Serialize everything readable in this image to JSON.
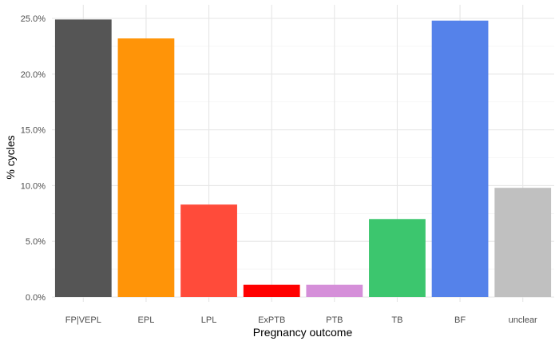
{
  "chart_data": {
    "type": "bar",
    "categories": [
      "FP|VEPL",
      "EPL",
      "LPL",
      "ExPTB",
      "PTB",
      "TB",
      "BF",
      "unclear"
    ],
    "values": [
      24.9,
      23.2,
      8.3,
      1.1,
      1.1,
      7.0,
      24.8,
      9.8
    ],
    "colors": [
      "#555555",
      "#ff9408",
      "#ff4b3a",
      "#ff0000",
      "#d58fd9",
      "#3cc66e",
      "#5582ea",
      "#c0c0c0"
    ],
    "xlabel": "Pregnancy outcome",
    "ylabel": "% cycles",
    "ylim": [
      0,
      25.7
    ],
    "yticks": [
      0,
      5,
      10,
      15,
      20,
      25
    ],
    "ytick_labels": [
      "0.0%",
      "5.0%",
      "10.0%",
      "15.0%",
      "20.0%",
      "25.0%"
    ],
    "grid": true,
    "legend": "none"
  }
}
